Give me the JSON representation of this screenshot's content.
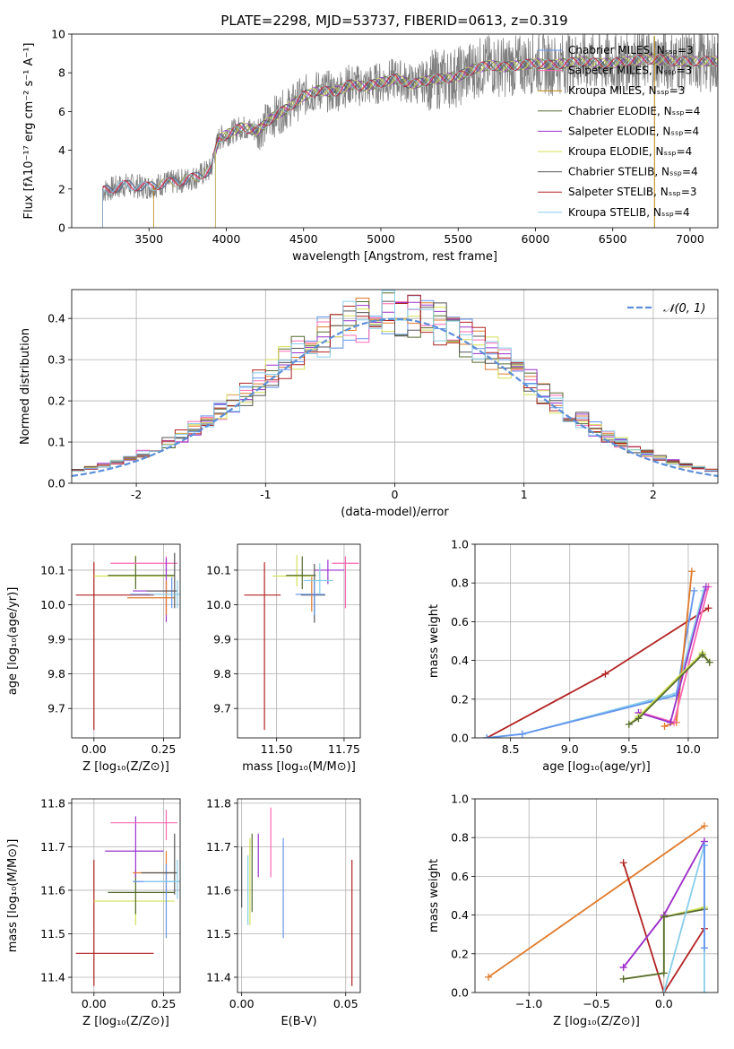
{
  "chart_data": [
    {
      "type": "line",
      "title": "PLATE=2298, MJD=53737, FIBERID=0613, z=0.319",
      "xlabel": "wavelength [Angstrom, rest frame]",
      "ylabel": "Flux [fλ10⁻¹⁷ erg cm⁻² s⁻¹ A⁻¹]",
      "xlim": [
        3000,
        7180
      ],
      "ylim": [
        0,
        10
      ],
      "xticks": [
        3500,
        4000,
        4500,
        5000,
        5500,
        6000,
        6500,
        7000
      ],
      "yticks": [
        0,
        2,
        4,
        6,
        8,
        10
      ],
      "grid": false,
      "legend_position": "right",
      "data_series_color": "#808080",
      "series": [
        {
          "name": "Chabrier MILES, Nₛₛₚ=3",
          "color": "#6495ed"
        },
        {
          "name": "Salpeter MILES, Nₛₛₚ=3",
          "color": "#ff69b4"
        },
        {
          "name": "Kroupa MILES, Nₛₛₚ=3",
          "color": "#b8860b"
        },
        {
          "name": "Chabrier ELODIE, Nₛₛₚ=4",
          "color": "#556b2f"
        },
        {
          "name": "Salpeter ELODIE, Nₛₛₚ=4",
          "color": "#9932cc"
        },
        {
          "name": "Kroupa ELODIE, Nₛₛₚ=4",
          "color": "#d4e157"
        },
        {
          "name": "Chabrier STELIB, Nₛₛₚ=4",
          "color": "#555555"
        },
        {
          "name": "Salpeter STELIB, Nₛₛₚ=3",
          "color": "#b22222"
        },
        {
          "name": "Kroupa STELIB, Nₛₛₚ=4",
          "color": "#87ceeb"
        }
      ],
      "continuum": {
        "x": [
          3200,
          3350,
          3500,
          3600,
          3700,
          3800,
          3900,
          3950,
          4000,
          4100,
          4200,
          4300,
          4400,
          4500,
          4600,
          4700,
          4800,
          4900,
          5000,
          5100,
          5200,
          5300,
          5400,
          5500,
          5600,
          5700,
          5800,
          5900,
          6000,
          6100,
          6200,
          6300,
          6400,
          6500,
          6600,
          6700,
          6800,
          6900,
          7000,
          7100
        ],
        "y": [
          1.9,
          2.2,
          2.1,
          2.3,
          2.4,
          2.6,
          3.0,
          4.6,
          4.8,
          5.2,
          5.0,
          5.7,
          6.2,
          6.8,
          7.1,
          7.0,
          7.4,
          7.3,
          7.5,
          7.7,
          7.4,
          7.6,
          7.7,
          7.8,
          8.2,
          8.4,
          8.3,
          8.4,
          8.5,
          8.4,
          8.5,
          8.6,
          8.5,
          8.5,
          8.6,
          8.7,
          8.7,
          8.6,
          8.6,
          8.6
        ]
      }
    },
    {
      "type": "line",
      "xlabel": "(data-model)/error",
      "ylabel": "Normed distribution",
      "xlim": [
        -2.5,
        2.5
      ],
      "ylim": [
        0,
        0.47
      ],
      "xticks": [
        -2,
        -1,
        0,
        1,
        2
      ],
      "yticks": [
        0.0,
        0.1,
        0.2,
        0.3,
        0.4
      ],
      "grid": true,
      "legend_position": "top-right",
      "legend": "𝒩(0, 1)",
      "reference_curve": {
        "type": "gaussian",
        "mean": 0,
        "sigma": 1,
        "color": "#5b8fd9",
        "style": "dashed"
      },
      "hist_bins": {
        "start": -2.5,
        "width": 0.1,
        "count": 50
      },
      "series_colors": [
        "#6495ed",
        "#ff69b4",
        "#e07a2b",
        "#556b2f",
        "#9932cc",
        "#d4e157",
        "#555555",
        "#b22222",
        "#87ceeb"
      ]
    },
    {
      "type": "scatter",
      "xlabel": "Z [log₁₀(Z/Z⊙)]",
      "ylabel": "age  [log₁₀(age/yr)]",
      "xlim": [
        -0.08,
        0.31
      ],
      "ylim": [
        9.615,
        10.175
      ],
      "xticks": [
        0.0,
        0.25
      ],
      "xtick_labels": [
        "0.00",
        "0.25"
      ],
      "yticks": [
        9.7,
        9.8,
        9.9,
        10.0,
        10.1
      ],
      "grid": true,
      "errorbars": [
        {
          "x": 0.0,
          "y": 10.028,
          "xerr": [
            0.065,
            0.215
          ],
          "yerr": [
            0.39,
            0.095
          ],
          "color": "#b22222"
        },
        {
          "x": 0.15,
          "y": 10.083,
          "xerr": [
            0.15,
            0.14
          ],
          "yerr": [
            0.03,
            0.06
          ],
          "color": "#d4e157"
        },
        {
          "x": 0.15,
          "y": 10.085,
          "xerr": [
            0.1,
            0.14
          ],
          "yerr": [
            0.04,
            0.055
          ],
          "color": "#556b2f"
        },
        {
          "x": 0.26,
          "y": 10.12,
          "xerr": [
            0.2,
            0.04
          ],
          "yerr": [
            0.025,
            0.02
          ],
          "color": "#ff69b4"
        },
        {
          "x": 0.26,
          "y": 10.04,
          "xerr": [
            0.12,
            0.03
          ],
          "yerr": [
            0.09,
            0.095
          ],
          "color": "#9932cc"
        },
        {
          "x": 0.26,
          "y": 10.02,
          "xerr": [
            0.14,
            0.03
          ],
          "yerr": [
            0.05,
            0.05
          ],
          "color": "#e07a2b"
        },
        {
          "x": 0.28,
          "y": 10.03,
          "xerr": [
            0.15,
            0.02
          ],
          "yerr": [
            0.04,
            0.05
          ],
          "color": "#6495ed"
        },
        {
          "x": 0.29,
          "y": 10.04,
          "xerr": [
            0.1,
            0.01
          ],
          "yerr": [
            0.05,
            0.11
          ],
          "color": "#555555"
        },
        {
          "x": 0.3,
          "y": 10.03,
          "xerr": [
            0.1,
            0.01
          ],
          "yerr": [
            0.04,
            0.04
          ],
          "color": "#87ceeb"
        }
      ]
    },
    {
      "type": "scatter",
      "xlabel": "mass [log₁₀(M/M⊙)]",
      "xlim": [
        11.355,
        11.81
      ],
      "ylim": [
        9.615,
        10.175
      ],
      "xticks": [
        11.5,
        11.75
      ],
      "xtick_labels": [
        "11.50",
        "11.75"
      ],
      "yticks": [
        9.7,
        9.8,
        9.9,
        10.0,
        10.1
      ],
      "grid": true,
      "errorbars": [
        {
          "x": 11.455,
          "y": 10.028,
          "xerr": [
            0.075,
            0.06
          ],
          "yerr": [
            0.39,
            0.095
          ],
          "color": "#b22222"
        },
        {
          "x": 11.575,
          "y": 10.083,
          "xerr": [
            0.09,
            0.06
          ],
          "yerr": [
            0.03,
            0.06
          ],
          "color": "#d4e157"
        },
        {
          "x": 11.595,
          "y": 10.085,
          "xerr": [
            0.06,
            0.05
          ],
          "yerr": [
            0.04,
            0.055
          ],
          "color": "#556b2f"
        },
        {
          "x": 11.69,
          "y": 10.1,
          "xerr": [
            0.05,
            0.06
          ],
          "yerr": [
            0.04,
            0.03
          ],
          "color": "#9932cc"
        },
        {
          "x": 11.755,
          "y": 10.12,
          "xerr": [
            0.05,
            0.05
          ],
          "yerr": [
            0.13,
            0.02
          ],
          "color": "#ff69b4"
        },
        {
          "x": 11.64,
          "y": 10.028,
          "xerr": [
            0.05,
            0.04
          ],
          "yerr": [
            0.08,
            0.09
          ],
          "color": "#555555"
        },
        {
          "x": 11.63,
          "y": 10.03,
          "xerr": [
            0.05,
            0.03
          ],
          "yerr": [
            0.05,
            0.05
          ],
          "color": "#e07a2b"
        },
        {
          "x": 11.64,
          "y": 10.03,
          "xerr": [
            0.07,
            0.04
          ],
          "yerr": [
            0.06,
            0.04
          ],
          "color": "#6495ed"
        },
        {
          "x": 11.66,
          "y": 10.07,
          "xerr": [
            0.06,
            0.05
          ],
          "yerr": [
            0.04,
            0.05
          ],
          "color": "#87ceeb"
        }
      ]
    },
    {
      "type": "line",
      "xlabel": "age  [log₁₀(age/yr)]",
      "ylabel": "mass weight",
      "xlim": [
        8.2,
        10.25
      ],
      "ylim": [
        0,
        1.0
      ],
      "xticks": [
        8.5,
        9.0,
        9.5,
        10.0
      ],
      "xtick_labels": [
        "8.5",
        "9.0",
        "9.5",
        "10.0"
      ],
      "yticks": [
        0.0,
        0.2,
        0.4,
        0.6,
        0.8,
        1.0
      ],
      "grid": true,
      "series": [
        {
          "color": "#b22222",
          "x": [
            8.3,
            9.3,
            10.17
          ],
          "y": [
            0.0,
            0.33,
            0.67
          ]
        },
        {
          "color": "#87ceeb",
          "x": [
            8.3,
            8.6,
            9.9,
            10.13
          ],
          "y": [
            0.0,
            0.02,
            0.23,
            0.76
          ]
        },
        {
          "color": "#6495ed",
          "x": [
            8.3,
            8.6,
            9.9,
            10.05
          ],
          "y": [
            0.0,
            0.02,
            0.22,
            0.76
          ]
        },
        {
          "color": "#e07a2b",
          "x": [
            9.8,
            9.9,
            10.03
          ],
          "y": [
            0.06,
            0.08,
            0.86
          ]
        },
        {
          "color": "#ff69b4",
          "x": [
            9.6,
            9.88,
            10.17
          ],
          "y": [
            0.13,
            0.08,
            0.78
          ]
        },
        {
          "color": "#9932cc",
          "x": [
            9.58,
            9.85,
            10.15
          ],
          "y": [
            0.13,
            0.08,
            0.78
          ]
        },
        {
          "color": "#d4e157",
          "x": [
            9.5,
            9.58,
            10.12,
            10.18
          ],
          "y": [
            0.07,
            0.11,
            0.44,
            0.39
          ]
        },
        {
          "color": "#556b2f",
          "x": [
            9.5,
            9.58,
            10.12,
            10.18
          ],
          "y": [
            0.07,
            0.1,
            0.43,
            0.39
          ]
        }
      ]
    },
    {
      "type": "scatter",
      "xlabel": "Z [log₁₀(Z/Z⊙)]",
      "ylabel": "mass [log₁₀(M/M⊙)]",
      "xlim": [
        -0.08,
        0.31
      ],
      "ylim": [
        11.365,
        11.81
      ],
      "xticks": [
        0.0,
        0.25
      ],
      "xtick_labels": [
        "0.00",
        "0.25"
      ],
      "yticks": [
        11.4,
        11.5,
        11.6,
        11.7,
        11.8
      ],
      "grid": true,
      "errorbars": [
        {
          "x": 0.0,
          "y": 11.455,
          "xerr": [
            0.065,
            0.215
          ],
          "yerr": [
            0.075,
            0.215
          ],
          "color": "#b22222"
        },
        {
          "x": 0.15,
          "y": 11.575,
          "xerr": [
            0.15,
            0.14
          ],
          "yerr": [
            0.055,
            0.06
          ],
          "color": "#d4e157"
        },
        {
          "x": 0.15,
          "y": 11.595,
          "xerr": [
            0.1,
            0.14
          ],
          "yerr": [
            0.05,
            0.05
          ],
          "color": "#556b2f"
        },
        {
          "x": 0.15,
          "y": 11.69,
          "xerr": [
            0.11,
            0.1
          ],
          "yerr": [
            0.06,
            0.08
          ],
          "color": "#9932cc"
        },
        {
          "x": 0.26,
          "y": 11.755,
          "xerr": [
            0.2,
            0.04
          ],
          "yerr": [
            0.04,
            0.03
          ],
          "color": "#ff69b4"
        },
        {
          "x": 0.26,
          "y": 11.64,
          "xerr": [
            0.12,
            0.03
          ],
          "yerr": [
            0.05,
            0.05
          ],
          "color": "#e07a2b"
        },
        {
          "x": 0.26,
          "y": 11.62,
          "xerr": [
            0.12,
            0.03
          ],
          "yerr": [
            0.13,
            0.04
          ],
          "color": "#6495ed"
        },
        {
          "x": 0.29,
          "y": 11.64,
          "xerr": [
            0.12,
            0.01
          ],
          "yerr": [
            0.05,
            0.09
          ],
          "color": "#555555"
        },
        {
          "x": 0.3,
          "y": 11.62,
          "xerr": [
            0.12,
            0.01
          ],
          "yerr": [
            0.04,
            0.05
          ],
          "color": "#87ceeb"
        }
      ]
    },
    {
      "type": "scatter",
      "xlabel": "E(B-V)",
      "xlim": [
        -0.002,
        0.057
      ],
      "ylim": [
        11.365,
        11.81
      ],
      "xticks": [
        0.0,
        0.05
      ],
      "xtick_labels": [
        "0.00",
        "0.05"
      ],
      "yticks": [
        11.4,
        11.5,
        11.6,
        11.7,
        11.8
      ],
      "grid": true,
      "errorbars": [
        {
          "x": 0.0,
          "y": 11.64,
          "yerr": [
            0.08,
            0.06
          ],
          "color": "#555555"
        },
        {
          "x": 0.003,
          "y": 11.6,
          "yerr": [
            0.08,
            0.08
          ],
          "color": "#87ceeb"
        },
        {
          "x": 0.004,
          "y": 11.6,
          "yerr": [
            0.08,
            0.12
          ],
          "color": "#d4e157"
        },
        {
          "x": 0.005,
          "y": 11.65,
          "yerr": [
            0.1,
            0.08
          ],
          "color": "#556b2f"
        },
        {
          "x": 0.008,
          "y": 11.68,
          "yerr": [
            0.05,
            0.05
          ],
          "color": "#9932cc"
        },
        {
          "x": 0.014,
          "y": 11.7,
          "yerr": [
            0.07,
            0.09
          ],
          "color": "#ff69b4"
        },
        {
          "x": 0.02,
          "y": 11.6,
          "yerr": [
            0.11,
            0.12
          ],
          "color": "#6495ed"
        },
        {
          "x": 0.053,
          "y": 11.53,
          "yerr": [
            0.15,
            0.14
          ],
          "color": "#b22222"
        }
      ]
    },
    {
      "type": "line",
      "xlabel": "Z [log₁₀(Z/Z⊙)]",
      "ylabel": "mass weight",
      "xlim": [
        -1.4,
        0.4
      ],
      "ylim": [
        0,
        1.0
      ],
      "xticks": [
        -1.0,
        -0.5,
        0.0
      ],
      "xtick_labels": [
        "−1.0",
        "−0.5",
        "0.0"
      ],
      "yticks": [
        0.0,
        0.2,
        0.4,
        0.6,
        0.8,
        1.0
      ],
      "grid": true,
      "series": [
        {
          "color": "#e07a2b",
          "x": [
            -1.3,
            0.3
          ],
          "y": [
            0.08,
            0.86
          ]
        },
        {
          "color": "#b22222",
          "x": [
            -0.3,
            0.0,
            0.3
          ],
          "y": [
            0.67,
            0.0,
            0.33
          ]
        },
        {
          "color": "#ff69b4",
          "x": [
            -0.3,
            0.0,
            0.3
          ],
          "y": [
            0.13,
            0.4,
            0.78
          ]
        },
        {
          "color": "#9932cc",
          "x": [
            -0.3,
            0.0,
            0.3
          ],
          "y": [
            0.13,
            0.4,
            0.78
          ]
        },
        {
          "color": "#d4e157",
          "x": [
            -0.3,
            0.0,
            0.0,
            0.3
          ],
          "y": [
            0.07,
            0.1,
            0.39,
            0.44
          ]
        },
        {
          "color": "#556b2f",
          "x": [
            -0.3,
            0.0,
            0.0,
            0.3
          ],
          "y": [
            0.07,
            0.1,
            0.39,
            0.43
          ]
        },
        {
          "color": "#87ceeb",
          "x": [
            0.0,
            0.3,
            0.3
          ],
          "y": [
            0.0,
            0.76,
            0.0
          ]
        },
        {
          "color": "#6495ed",
          "x": [
            0.3,
            0.3
          ],
          "y": [
            0.23,
            0.76
          ]
        }
      ]
    }
  ]
}
